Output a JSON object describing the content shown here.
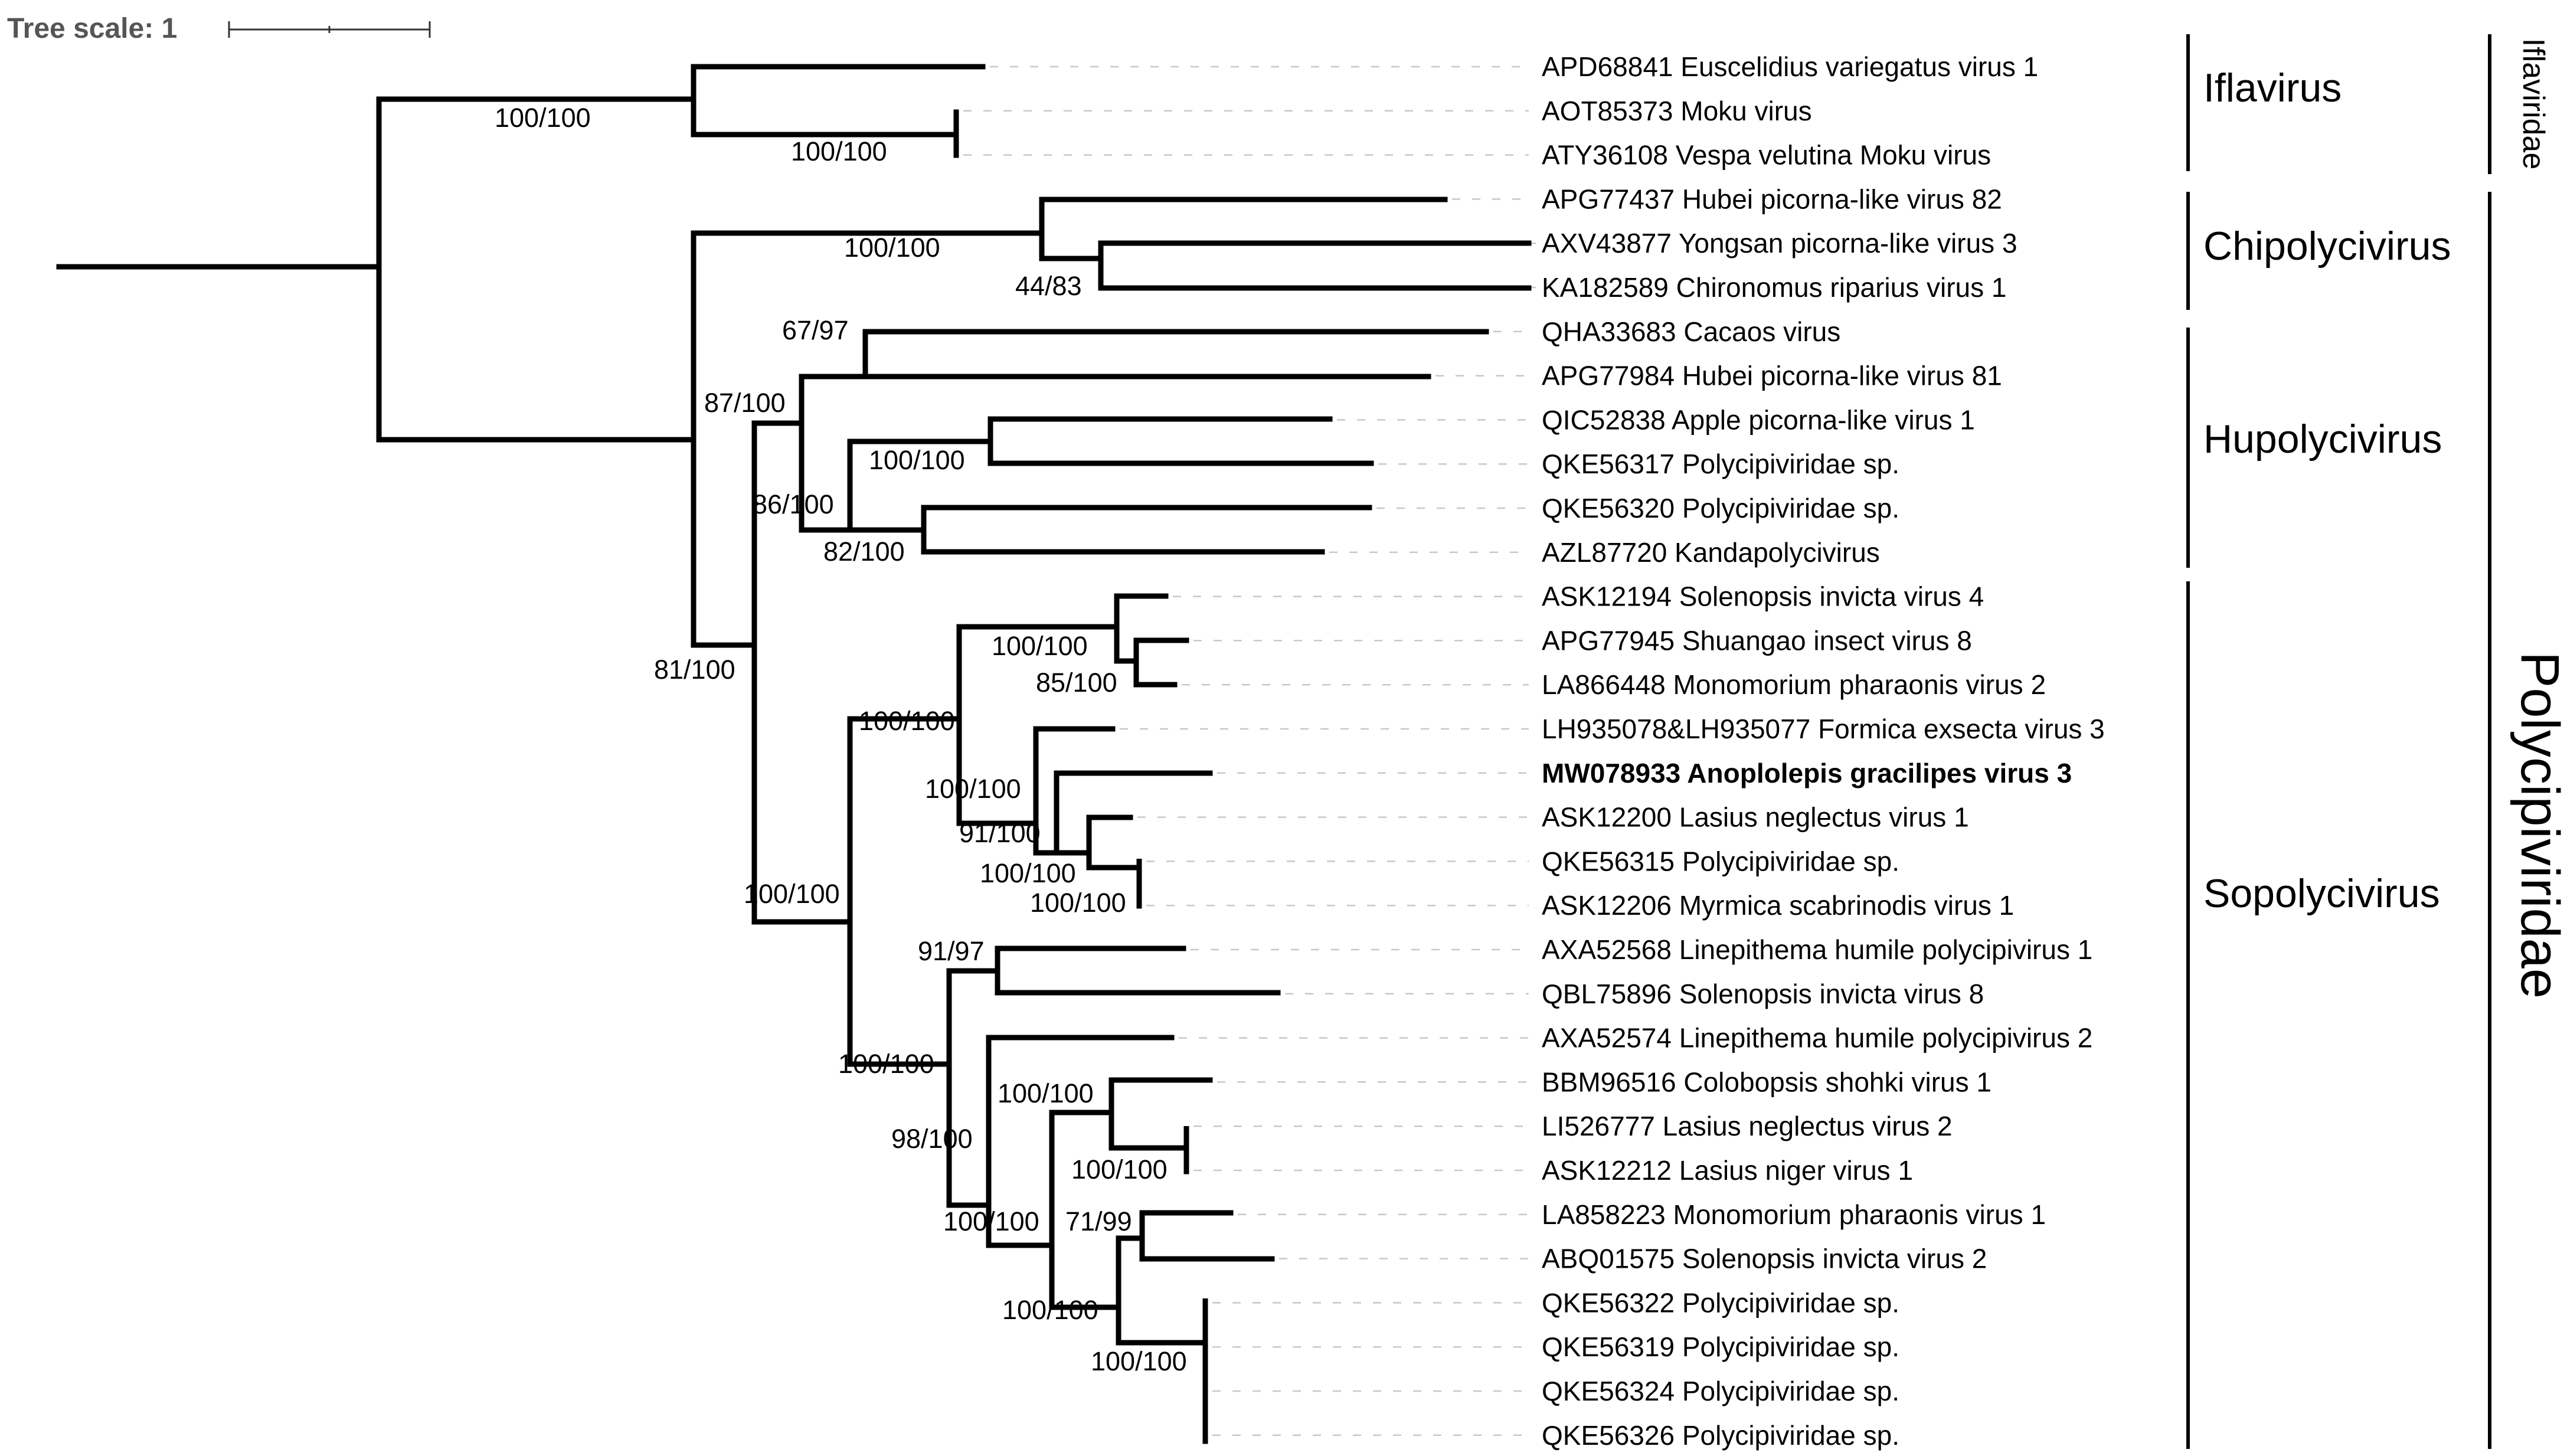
{
  "tree_scale": {
    "label": "Tree scale: 1"
  },
  "taxa": [
    {
      "label": "APD68841 Euscelidius variegatus virus 1",
      "bold": false
    },
    {
      "label": "AOT85373 Moku virus",
      "bold": false
    },
    {
      "label": "ATY36108 Vespa velutina Moku virus",
      "bold": false
    },
    {
      "label": "APG77437 Hubei picorna-like virus 82",
      "bold": false
    },
    {
      "label": "AXV43877 Yongsan picorna-like virus 3",
      "bold": false
    },
    {
      "label": "KA182589 Chironomus riparius virus 1",
      "bold": false
    },
    {
      "label": "QHA33683 Cacaos virus",
      "bold": false
    },
    {
      "label": "APG77984 Hubei picorna-like virus 81",
      "bold": false
    },
    {
      "label": "QIC52838 Apple picorna-like virus 1",
      "bold": false
    },
    {
      "label": "QKE56317 Polycipiviridae sp.",
      "bold": false
    },
    {
      "label": "QKE56320 Polycipiviridae sp.",
      "bold": false
    },
    {
      "label": "AZL87720 Kandapolycivirus",
      "bold": false
    },
    {
      "label": "ASK12194 Solenopsis invicta virus 4",
      "bold": false
    },
    {
      "label": "APG77945 Shuangao insect virus 8",
      "bold": false
    },
    {
      "label": "LA866448 Monomorium pharaonis virus 2",
      "bold": false
    },
    {
      "label": "LH935078&LH935077 Formica exsecta virus 3",
      "bold": false
    },
    {
      "label": "MW078933 Anoplolepis gracilipes virus 3",
      "bold": true
    },
    {
      "label": "ASK12200 Lasius neglectus virus 1",
      "bold": false
    },
    {
      "label": "QKE56315 Polycipiviridae sp.",
      "bold": false
    },
    {
      "label": "ASK12206 Myrmica scabrinodis virus 1",
      "bold": false
    },
    {
      "label": "AXA52568 Linepithema humile polycipivirus 1",
      "bold": false
    },
    {
      "label": "QBL75896 Solenopsis invicta virus 8",
      "bold": false
    },
    {
      "label": "AXA52574 Linepithema humile polycipivirus 2",
      "bold": false
    },
    {
      "label": "BBM96516 Colobopsis shohki virus 1",
      "bold": false
    },
    {
      "label": "LI526777 Lasius neglectus virus 2",
      "bold": false
    },
    {
      "label": "ASK12212 Lasius niger virus 1",
      "bold": false
    },
    {
      "label": "LA858223 Monomorium pharaonis virus 1",
      "bold": false
    },
    {
      "label": "ABQ01575 Solenopsis invicta virus 2",
      "bold": false
    },
    {
      "label": "QKE56322 Polycipiviridae sp.",
      "bold": false
    },
    {
      "label": "QKE56319 Polycipiviridae sp.",
      "bold": false
    },
    {
      "label": "QKE56324 Polycipiviridae sp.",
      "bold": false
    },
    {
      "label": "QKE56326 Polycipiviridae sp.",
      "bold": false
    }
  ],
  "support_values": [
    "100/100",
    "100/100",
    "100/100",
    "44/83",
    "67/97",
    "87/100",
    "100/100",
    "86/100",
    "82/100",
    "81/100",
    "100/100",
    "85/100",
    "100/100",
    "100/100",
    "91/100",
    "100/100",
    "100/100",
    "100/100",
    "91/97",
    "100/100",
    "100/100",
    "98/100",
    "100/100",
    "100/100",
    "71/99",
    "100/100",
    "100/100"
  ],
  "genera": [
    {
      "name": "Iflavirus",
      "taxa_range": "APD68841 – ATY36108"
    },
    {
      "name": "Chipolycivirus",
      "taxa_range": "APG77437 – KA182589"
    },
    {
      "name": "Hupolycivirus",
      "taxa_range": "QHA33683 – AZL87720"
    },
    {
      "name": "Sopolycivirus",
      "taxa_range": "ASK12194 – QKE56326"
    }
  ],
  "families": [
    {
      "name": "Iflaviridae"
    },
    {
      "name": "Polycipiviridae"
    }
  ]
}
